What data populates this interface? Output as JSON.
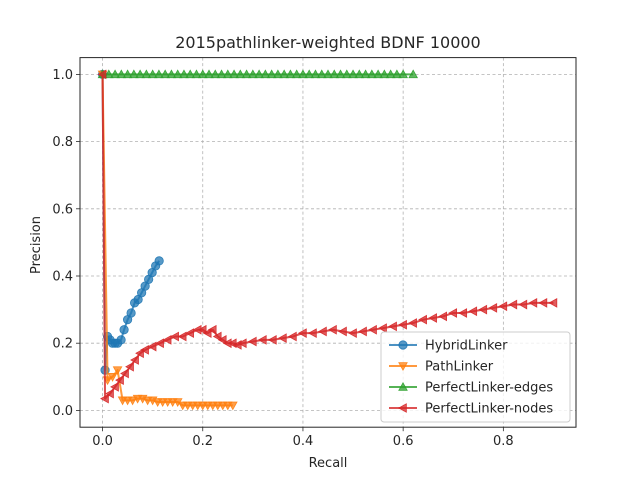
{
  "chart_data": {
    "type": "line",
    "title": "2015pathlinker-weighted BDNF 10000",
    "xlabel": "Recall",
    "ylabel": "Precision",
    "xlim": [
      -0.045,
      0.945
    ],
    "ylim": [
      -0.05,
      1.05
    ],
    "xticks": [
      0.0,
      0.2,
      0.4,
      0.6,
      0.8
    ],
    "xtick_labels": [
      "0.0",
      "0.2",
      "0.4",
      "0.6",
      "0.8"
    ],
    "yticks": [
      0.0,
      0.2,
      0.4,
      0.6,
      0.8,
      1.0
    ],
    "ytick_labels": [
      "0.0",
      "0.2",
      "0.4",
      "0.6",
      "0.8",
      "1.0"
    ],
    "grid": true,
    "legend_position": "lower right",
    "series": [
      {
        "name": "HybridLinker",
        "color": "#1f77b4",
        "marker": "circle",
        "x": [
          0.0,
          0.005,
          0.01,
          0.015,
          0.02,
          0.025,
          0.03,
          0.037,
          0.043,
          0.05,
          0.057,
          0.064,
          0.071,
          0.078,
          0.085,
          0.092,
          0.099,
          0.106,
          0.113
        ],
        "y": [
          1.0,
          0.12,
          0.22,
          0.21,
          0.2,
          0.2,
          0.2,
          0.21,
          0.24,
          0.27,
          0.29,
          0.32,
          0.33,
          0.35,
          0.37,
          0.39,
          0.41,
          0.43,
          0.445
        ]
      },
      {
        "name": "PathLinker",
        "color": "#ff7f0e",
        "marker": "triangle-down",
        "x": [
          0.0,
          0.01,
          0.02,
          0.03,
          0.04,
          0.05,
          0.06,
          0.07,
          0.08,
          0.09,
          0.1,
          0.11,
          0.12,
          0.13,
          0.14,
          0.15,
          0.16,
          0.17,
          0.18,
          0.19,
          0.2,
          0.21,
          0.22,
          0.23,
          0.24,
          0.25,
          0.26
        ],
        "y": [
          1.0,
          0.09,
          0.1,
          0.12,
          0.03,
          0.03,
          0.03,
          0.035,
          0.035,
          0.03,
          0.03,
          0.025,
          0.025,
          0.025,
          0.025,
          0.025,
          0.015,
          0.015,
          0.015,
          0.015,
          0.015,
          0.015,
          0.015,
          0.015,
          0.015,
          0.015,
          0.015
        ]
      },
      {
        "name": "PerfectLinker-edges",
        "color": "#2ca02c",
        "marker": "triangle-up",
        "x": [
          0.0,
          0.0125,
          0.025,
          0.0375,
          0.05,
          0.0625,
          0.075,
          0.0875,
          0.1,
          0.1125,
          0.125,
          0.1375,
          0.15,
          0.1625,
          0.175,
          0.1875,
          0.2,
          0.2125,
          0.225,
          0.2375,
          0.25,
          0.2625,
          0.275,
          0.2875,
          0.3,
          0.3125,
          0.325,
          0.3375,
          0.35,
          0.3625,
          0.375,
          0.3875,
          0.4,
          0.4125,
          0.425,
          0.4375,
          0.45,
          0.4625,
          0.475,
          0.4875,
          0.5,
          0.5125,
          0.525,
          0.5375,
          0.55,
          0.5625,
          0.575,
          0.5875,
          0.6,
          0.62
        ],
        "y": [
          1.0,
          1.0,
          1.0,
          1.0,
          1.0,
          1.0,
          1.0,
          1.0,
          1.0,
          1.0,
          1.0,
          1.0,
          1.0,
          1.0,
          1.0,
          1.0,
          1.0,
          1.0,
          1.0,
          1.0,
          1.0,
          1.0,
          1.0,
          1.0,
          1.0,
          1.0,
          1.0,
          1.0,
          1.0,
          1.0,
          1.0,
          1.0,
          1.0,
          1.0,
          1.0,
          1.0,
          1.0,
          1.0,
          1.0,
          1.0,
          1.0,
          1.0,
          1.0,
          1.0,
          1.0,
          1.0,
          1.0,
          1.0,
          1.0,
          1.0
        ]
      },
      {
        "name": "PerfectLinker-nodes",
        "color": "#d62728",
        "marker": "triangle-left",
        "x": [
          0.0,
          0.005,
          0.015,
          0.025,
          0.035,
          0.045,
          0.055,
          0.065,
          0.075,
          0.085,
          0.1,
          0.115,
          0.13,
          0.145,
          0.16,
          0.175,
          0.19,
          0.2,
          0.21,
          0.22,
          0.23,
          0.24,
          0.25,
          0.26,
          0.27,
          0.28,
          0.3,
          0.32,
          0.34,
          0.36,
          0.38,
          0.4,
          0.42,
          0.44,
          0.46,
          0.48,
          0.5,
          0.52,
          0.54,
          0.56,
          0.58,
          0.6,
          0.62,
          0.64,
          0.66,
          0.68,
          0.7,
          0.72,
          0.74,
          0.76,
          0.78,
          0.8,
          0.82,
          0.84,
          0.86,
          0.88,
          0.9
        ],
        "y": [
          1.0,
          0.035,
          0.05,
          0.07,
          0.09,
          0.11,
          0.13,
          0.15,
          0.17,
          0.18,
          0.19,
          0.2,
          0.21,
          0.22,
          0.22,
          0.23,
          0.24,
          0.24,
          0.23,
          0.24,
          0.22,
          0.21,
          0.2,
          0.2,
          0.195,
          0.2,
          0.205,
          0.21,
          0.21,
          0.215,
          0.22,
          0.23,
          0.23,
          0.235,
          0.24,
          0.235,
          0.23,
          0.235,
          0.24,
          0.245,
          0.25,
          0.255,
          0.26,
          0.27,
          0.275,
          0.28,
          0.29,
          0.29,
          0.295,
          0.3,
          0.305,
          0.31,
          0.315,
          0.315,
          0.32,
          0.32,
          0.32
        ]
      }
    ]
  }
}
